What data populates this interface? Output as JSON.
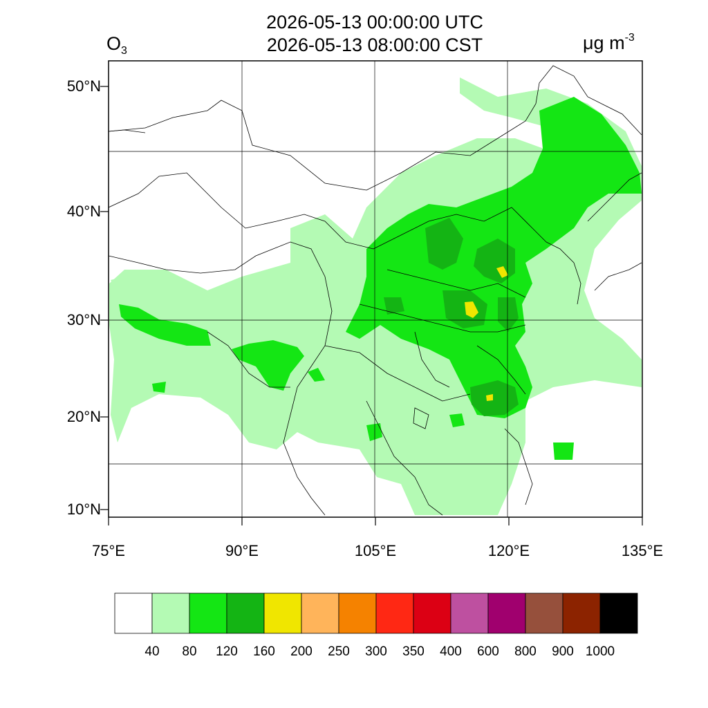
{
  "title": {
    "utc": "2026-05-13 00:00:00 UTC",
    "cst": "2026-05-13 08:00:00 CST"
  },
  "species": {
    "main": "O",
    "sub": "3"
  },
  "unit": {
    "main": "μg m",
    "sup": "-3"
  },
  "map": {
    "lon_range": [
      75,
      135
    ],
    "lat_range": [
      9,
      52
    ],
    "lat_ticks": [
      {
        "value": 10,
        "label": "10°N"
      },
      {
        "value": 20,
        "label": "20°N"
      },
      {
        "value": 30,
        "label": "30°N"
      },
      {
        "value": 40,
        "label": "40°N"
      },
      {
        "value": 50,
        "label": "50°N"
      }
    ],
    "lon_ticks": [
      {
        "value": 75,
        "label": "75°E"
      },
      {
        "value": 90,
        "label": "90°E"
      },
      {
        "value": 105,
        "label": "105°E"
      },
      {
        "value": 120,
        "label": "120°E"
      },
      {
        "value": 135,
        "label": "135°E"
      }
    ],
    "colors": {
      "level_40_80": "#b4fab4",
      "level_80_120": "#14e614",
      "level_120_160": "#14b414",
      "level_160_200": "#f0e600"
    }
  },
  "colorbar": {
    "colors": [
      "#ffffff",
      "#b4fab4",
      "#14e614",
      "#14b414",
      "#f0e600",
      "#ffb45a",
      "#f58200",
      "#ff2814",
      "#dc0014",
      "#be50a0",
      "#a0006e",
      "#96503c",
      "#8c2300",
      "#000000"
    ],
    "labels": [
      "40",
      "80",
      "120",
      "160",
      "200",
      "250",
      "300",
      "350",
      "400",
      "600",
      "800",
      "900",
      "1000"
    ]
  }
}
